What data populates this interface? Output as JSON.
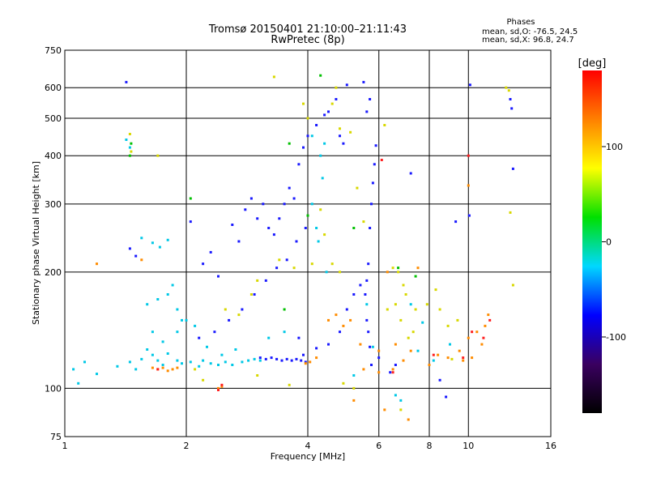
{
  "chart_data": {
    "type": "scatter",
    "title": "Tromsø 20150401 21:10:00–21:11:43",
    "subtitle": "RwPretec (8p)",
    "xlabel": "Frequency [MHz]",
    "ylabel": "Stationary phase Virtual Height [km]",
    "x_scale": "log",
    "y_scale": "log",
    "xlim": [
      1,
      16
    ],
    "ylim": [
      75,
      750
    ],
    "x_ticks": [
      1,
      2,
      4,
      6,
      8,
      10,
      16
    ],
    "y_ticks": [
      75,
      100,
      200,
      300,
      400,
      500,
      600,
      750
    ],
    "grid": true,
    "stats": {
      "title": "Phases",
      "line1": "mean, sd,O: -76.5, 24.5",
      "line2": "mean, sd,X:  96.8, 24.7"
    },
    "colorbar": {
      "label": "[deg]",
      "range": [
        -180,
        180
      ],
      "ticks": [
        100,
        0,
        -100
      ],
      "colors": [
        "#000000",
        "#3a0060",
        "#0000ff",
        "#00d8ff",
        "#00e000",
        "#ffff00",
        "#ff8000",
        "#ff0000"
      ]
    },
    "series": [
      {
        "color_group": "cyan",
        "points": [
          [
            1.05,
            112
          ],
          [
            1.08,
            103
          ],
          [
            1.12,
            117
          ],
          [
            1.2,
            109
          ],
          [
            1.35,
            114
          ],
          [
            1.45,
            117
          ],
          [
            1.5,
            112
          ],
          [
            1.55,
            119
          ],
          [
            1.6,
            126
          ],
          [
            1.65,
            122
          ],
          [
            1.7,
            118
          ],
          [
            1.75,
            115
          ],
          [
            1.8,
            123
          ],
          [
            1.9,
            118
          ],
          [
            1.95,
            116
          ],
          [
            2.05,
            117
          ],
          [
            2.15,
            114
          ],
          [
            2.2,
            118
          ],
          [
            2.3,
            116
          ],
          [
            2.4,
            115
          ],
          [
            2.5,
            117
          ],
          [
            2.6,
            115
          ],
          [
            2.75,
            117
          ],
          [
            2.85,
            118
          ],
          [
            2.95,
            119
          ],
          [
            3.05,
            118
          ],
          [
            1.55,
            245
          ],
          [
            1.65,
            238
          ],
          [
            1.72,
            232
          ],
          [
            1.8,
            242
          ],
          [
            1.6,
            165
          ],
          [
            1.7,
            170
          ],
          [
            1.8,
            175
          ],
          [
            1.9,
            160
          ],
          [
            1.85,
            185
          ],
          [
            2.0,
            150
          ],
          [
            2.1,
            145
          ],
          [
            1.9,
            140
          ],
          [
            1.95,
            150
          ],
          [
            4.1,
            300
          ],
          [
            4.2,
            260
          ],
          [
            4.25,
            240
          ],
          [
            4.3,
            400
          ],
          [
            4.1,
            450
          ],
          [
            4.35,
            350
          ],
          [
            4.4,
            430
          ],
          [
            4.45,
            200
          ],
          [
            7.2,
            165
          ],
          [
            7.5,
            125
          ],
          [
            7.7,
            148
          ],
          [
            8.2,
            118
          ],
          [
            9.0,
            130
          ],
          [
            5.2,
            108
          ],
          [
            6.6,
            96
          ],
          [
            6.8,
            93
          ],
          [
            1.42,
            440
          ],
          [
            1.45,
            420
          ],
          [
            1.65,
            140
          ],
          [
            1.75,
            132
          ],
          [
            2.25,
            128
          ],
          [
            2.45,
            122
          ],
          [
            2.65,
            126
          ],
          [
            3.2,
            135
          ],
          [
            3.5,
            140
          ],
          [
            5.6,
            165
          ],
          [
            5.8,
            128
          ]
        ]
      },
      {
        "color_group": "blue",
        "points": [
          [
            2.6,
            265
          ],
          [
            2.7,
            240
          ],
          [
            2.8,
            290
          ],
          [
            2.9,
            310
          ],
          [
            3.0,
            275
          ],
          [
            3.1,
            300
          ],
          [
            3.2,
            260
          ],
          [
            3.3,
            250
          ],
          [
            3.4,
            275
          ],
          [
            3.5,
            300
          ],
          [
            3.6,
            330
          ],
          [
            3.7,
            310
          ],
          [
            3.8,
            380
          ],
          [
            3.9,
            420
          ],
          [
            4.0,
            450
          ],
          [
            4.2,
            480
          ],
          [
            4.5,
            520
          ],
          [
            4.7,
            560
          ],
          [
            5.0,
            610
          ],
          [
            5.5,
            620
          ],
          [
            4.4,
            510
          ],
          [
            4.8,
            450
          ],
          [
            4.9,
            430
          ],
          [
            3.95,
            260
          ],
          [
            3.75,
            240
          ],
          [
            3.55,
            215
          ],
          [
            3.35,
            205
          ],
          [
            3.15,
            190
          ],
          [
            2.95,
            175
          ],
          [
            2.75,
            160
          ],
          [
            2.55,
            150
          ],
          [
            2.35,
            140
          ],
          [
            2.15,
            135
          ],
          [
            3.8,
            135
          ],
          [
            3.9,
            122
          ],
          [
            4.2,
            127
          ],
          [
            4.5,
            130
          ],
          [
            4.8,
            140
          ],
          [
            5.0,
            160
          ],
          [
            5.2,
            175
          ],
          [
            5.4,
            185
          ],
          [
            5.6,
            190
          ],
          [
            5.65,
            210
          ],
          [
            5.7,
            260
          ],
          [
            5.75,
            300
          ],
          [
            5.8,
            340
          ],
          [
            5.85,
            380
          ],
          [
            5.9,
            425
          ],
          [
            5.7,
            560
          ],
          [
            5.6,
            520
          ],
          [
            3.05,
            120
          ],
          [
            3.15,
            119
          ],
          [
            3.25,
            120
          ],
          [
            3.35,
            119
          ],
          [
            3.45,
            118
          ],
          [
            3.55,
            119
          ],
          [
            3.65,
            118
          ],
          [
            3.75,
            119
          ],
          [
            3.85,
            118
          ],
          [
            3.95,
            117
          ],
          [
            5.55,
            175
          ],
          [
            5.6,
            150
          ],
          [
            5.65,
            140
          ],
          [
            5.7,
            128
          ],
          [
            5.75,
            115
          ],
          [
            6.0,
            120
          ],
          [
            6.4,
            110
          ],
          [
            6.6,
            115
          ],
          [
            8.5,
            105
          ],
          [
            8.8,
            95
          ],
          [
            10.1,
            610
          ],
          [
            10.05,
            280
          ],
          [
            12.8,
            530
          ],
          [
            12.7,
            560
          ],
          [
            12.9,
            370
          ],
          [
            7.2,
            360
          ],
          [
            1.45,
            230
          ],
          [
            1.5,
            220
          ],
          [
            1.42,
            620
          ],
          [
            9.3,
            270
          ],
          [
            2.4,
            195
          ],
          [
            2.2,
            210
          ],
          [
            2.05,
            270
          ],
          [
            2.3,
            225
          ]
        ]
      },
      {
        "color_group": "yellow",
        "points": [
          [
            1.45,
            455
          ],
          [
            1.46,
            410
          ],
          [
            1.7,
            400
          ],
          [
            2.5,
            160
          ],
          [
            2.7,
            155
          ],
          [
            2.9,
            175
          ],
          [
            3.0,
            190
          ],
          [
            3.4,
            215
          ],
          [
            3.7,
            205
          ],
          [
            4.1,
            210
          ],
          [
            4.3,
            290
          ],
          [
            4.4,
            250
          ],
          [
            4.6,
            210
          ],
          [
            4.8,
            200
          ],
          [
            5.3,
            330
          ],
          [
            5.5,
            270
          ],
          [
            6.3,
            160
          ],
          [
            6.6,
            165
          ],
          [
            6.8,
            150
          ],
          [
            7.0,
            175
          ],
          [
            7.4,
            160
          ],
          [
            6.5,
            205
          ],
          [
            6.7,
            200
          ],
          [
            6.9,
            185
          ],
          [
            7.1,
            135
          ],
          [
            7.3,
            140
          ],
          [
            7.9,
            165
          ],
          [
            8.3,
            180
          ],
          [
            8.5,
            160
          ],
          [
            8.9,
            145
          ],
          [
            9.4,
            150
          ],
          [
            12.4,
            600
          ],
          [
            12.6,
            590
          ],
          [
            12.7,
            285
          ],
          [
            12.9,
            185
          ],
          [
            4.7,
            600
          ],
          [
            4.6,
            545
          ],
          [
            4.8,
            470
          ],
          [
            5.1,
            460
          ],
          [
            6.2,
            480
          ],
          [
            2.1,
            112
          ],
          [
            2.2,
            105
          ],
          [
            3.0,
            108
          ],
          [
            3.6,
            102
          ],
          [
            4.9,
            103
          ],
          [
            5.2,
            100
          ],
          [
            6.8,
            88
          ],
          [
            9.1,
            119
          ],
          [
            3.3,
            640
          ],
          [
            3.9,
            545
          ],
          [
            4.0,
            500
          ]
        ]
      },
      {
        "color_group": "orange",
        "points": [
          [
            1.65,
            113
          ],
          [
            1.7,
            112
          ],
          [
            1.75,
            113
          ],
          [
            1.8,
            111
          ],
          [
            1.85,
            112
          ],
          [
            1.9,
            113
          ],
          [
            2.4,
            100
          ],
          [
            2.45,
            101
          ],
          [
            4.5,
            150
          ],
          [
            4.7,
            155
          ],
          [
            4.9,
            145
          ],
          [
            5.1,
            150
          ],
          [
            5.4,
            130
          ],
          [
            6.0,
            125
          ],
          [
            6.6,
            130
          ],
          [
            6.9,
            118
          ],
          [
            7.2,
            125
          ],
          [
            8.0,
            115
          ],
          [
            8.4,
            122
          ],
          [
            8.9,
            120
          ],
          [
            9.5,
            125
          ],
          [
            10.0,
            135
          ],
          [
            10.5,
            140
          ],
          [
            11.0,
            145
          ],
          [
            11.2,
            155
          ],
          [
            10.8,
            130
          ],
          [
            10.2,
            120
          ],
          [
            9.7,
            118
          ],
          [
            4.2,
            120
          ],
          [
            4.05,
            117
          ],
          [
            3.95,
            116
          ],
          [
            6.5,
            112
          ],
          [
            6.0,
            110
          ],
          [
            5.5,
            112
          ],
          [
            7.5,
            205
          ],
          [
            10.0,
            335
          ],
          [
            1.2,
            210
          ],
          [
            1.55,
            215
          ],
          [
            6.3,
            200
          ],
          [
            5.2,
            93
          ],
          [
            6.2,
            88
          ],
          [
            7.1,
            83
          ]
        ]
      },
      {
        "color_group": "red",
        "points": [
          [
            2.4,
            99
          ],
          [
            2.45,
            102
          ],
          [
            1.7,
            112
          ],
          [
            9.7,
            120
          ],
          [
            10.2,
            140
          ],
          [
            10.9,
            135
          ],
          [
            11.3,
            150
          ],
          [
            6.5,
            110
          ],
          [
            8.2,
            122
          ],
          [
            10.0,
            400
          ],
          [
            6.1,
            390
          ]
        ]
      },
      {
        "color_group": "green",
        "points": [
          [
            1.45,
            400
          ],
          [
            1.46,
            430
          ],
          [
            4.3,
            645
          ],
          [
            3.6,
            430
          ],
          [
            4.0,
            280
          ],
          [
            5.2,
            260
          ],
          [
            6.7,
            205
          ],
          [
            7.4,
            195
          ],
          [
            2.05,
            310
          ],
          [
            3.5,
            160
          ]
        ]
      }
    ]
  }
}
